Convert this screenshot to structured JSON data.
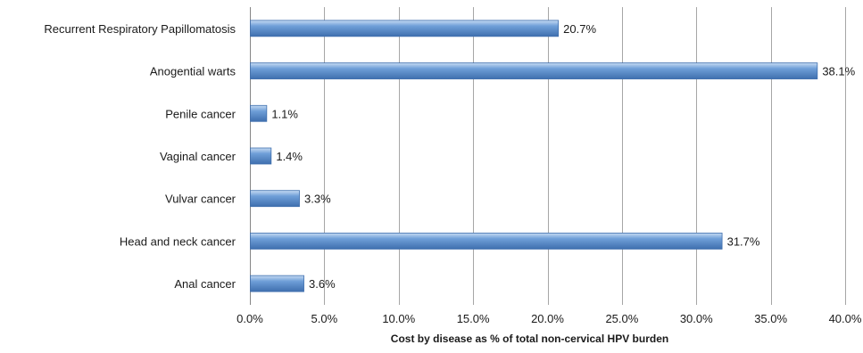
{
  "chart_data": {
    "type": "bar",
    "orientation": "horizontal",
    "categories": [
      "Recurrent Respiratory Papillomatosis",
      "Anogenital warts",
      "Penile cancer",
      "Vaginal cancer",
      "Vulvar cancer",
      "Head and neck cancer",
      "Anal cancer"
    ],
    "category_display": [
      "Recurrent Respiratory Papillomatosis",
      "Anogential warts",
      "Penile cancer",
      "Vaginal cancer",
      "Vulvar cancer",
      "Head and neck cancer",
      "Anal cancer"
    ],
    "values": [
      20.7,
      38.1,
      1.1,
      1.4,
      3.3,
      31.7,
      3.6
    ],
    "value_labels": [
      "20.7%",
      "38.1%",
      "1.1%",
      "1.4%",
      "3.3%",
      "31.7%",
      "3.6%"
    ],
    "xlim": [
      0,
      40
    ],
    "x_ticks": [
      0,
      5,
      10,
      15,
      20,
      25,
      30,
      35,
      40
    ],
    "x_tick_labels": [
      "0.0%",
      "5.0%",
      "10.0%",
      "15.0%",
      "20.0%",
      "25.0%",
      "30.0%",
      "35.0%",
      "40.0%"
    ],
    "xlabel": "Cost by disease as % of total non-cervical HPV burden",
    "ylabel": "",
    "title": "",
    "grid": "vertical",
    "legend": "none",
    "bar_color": "#6f9fd8",
    "bar_color_light": "#c6dbf3",
    "bar_color_dark": "#3f6fae",
    "grid_color": "#a6a6a6",
    "axis_color": "#868686"
  }
}
